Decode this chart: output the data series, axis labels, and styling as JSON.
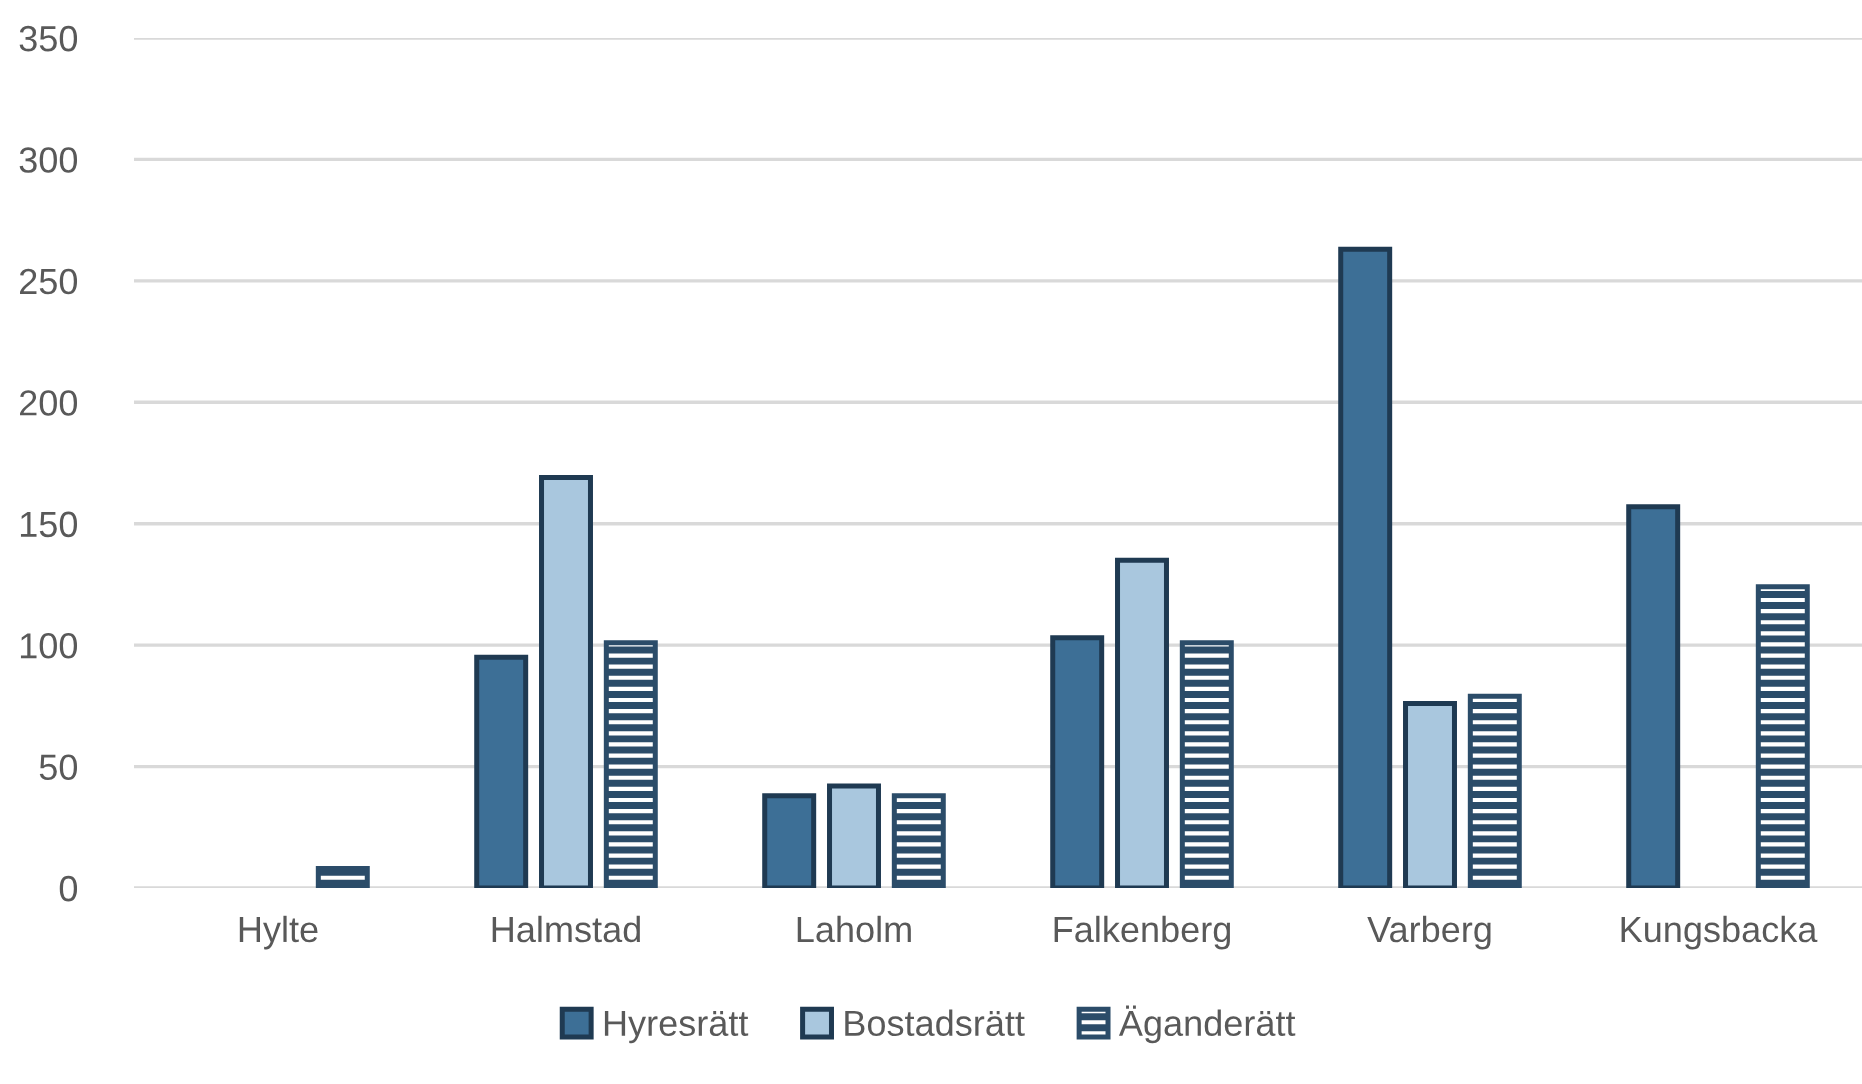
{
  "chart_data": {
    "type": "bar",
    "categories": [
      "Hylte",
      "Halmstad",
      "Laholm",
      "Falkenberg",
      "Varberg",
      "Kungsbacka"
    ],
    "series": [
      {
        "name": "Hyresrätt",
        "color": "#3d6f96",
        "values": [
          null,
          95,
          38,
          103,
          263,
          157
        ]
      },
      {
        "name": "Bostadsrätt",
        "color": "#a9c7de",
        "values": [
          null,
          169,
          42,
          135,
          76,
          null
        ]
      },
      {
        "name": "Äganderätt",
        "color": "#2b4c69",
        "values": [
          8,
          101,
          38,
          101,
          79,
          124
        ]
      }
    ],
    "ylim": [
      0,
      350
    ],
    "yticks": [
      0,
      50,
      100,
      150,
      200,
      250,
      300,
      350
    ],
    "grid": "y",
    "legend": "bottom"
  }
}
